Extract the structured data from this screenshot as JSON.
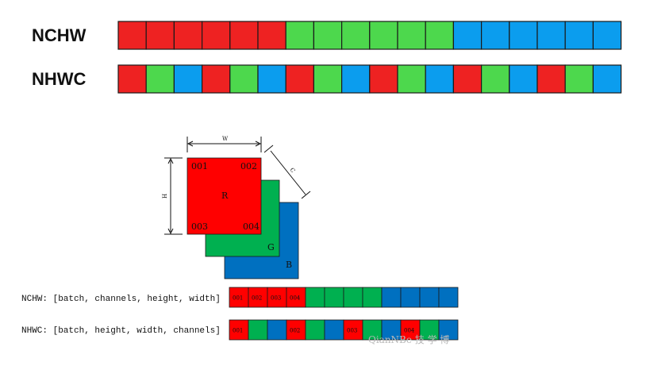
{
  "colors": {
    "R": "#ee2222",
    "G": "#4dd84d",
    "B": "#0b9dee",
    "R_dark": "#ff0000",
    "G_dark": "#00b050",
    "B_dark": "#0070c0"
  },
  "top_rows": [
    {
      "label": "NCHW",
      "pattern": [
        "R",
        "R",
        "R",
        "R",
        "R",
        "R",
        "G",
        "G",
        "G",
        "G",
        "G",
        "G",
        "B",
        "B",
        "B",
        "B",
        "B",
        "B"
      ]
    },
    {
      "label": "NHWC",
      "pattern": [
        "R",
        "G",
        "B",
        "R",
        "G",
        "B",
        "R",
        "G",
        "B",
        "R",
        "G",
        "B",
        "R",
        "G",
        "B",
        "R",
        "G",
        "B"
      ]
    }
  ],
  "tensor": {
    "w_label": "W",
    "h_label": "H",
    "c_label": "C",
    "corner_labels": [
      "001",
      "002",
      "003",
      "004"
    ],
    "channel_labels": [
      "R",
      "G",
      "B"
    ]
  },
  "bottom_rows": [
    {
      "label": "NCHW: [batch, channels, height, width]",
      "pattern": [
        "R",
        "R",
        "R",
        "R",
        "G",
        "G",
        "G",
        "G",
        "B",
        "B",
        "B",
        "B"
      ],
      "cell_numbers": [
        "001",
        "002",
        "003",
        "004",
        "",
        "",
        "",
        "",
        "",
        "",
        "",
        ""
      ]
    },
    {
      "label": "NHWC: [batch, height, width, channels]",
      "pattern": [
        "R",
        "G",
        "B",
        "R",
        "G",
        "B",
        "R",
        "G",
        "B",
        "R",
        "G",
        "B"
      ],
      "cell_numbers": [
        "001",
        "",
        "",
        "002",
        "",
        "",
        "003",
        "",
        "",
        "004",
        "",
        ""
      ]
    }
  ],
  "watermark": "QianNBe 技 学 博"
}
